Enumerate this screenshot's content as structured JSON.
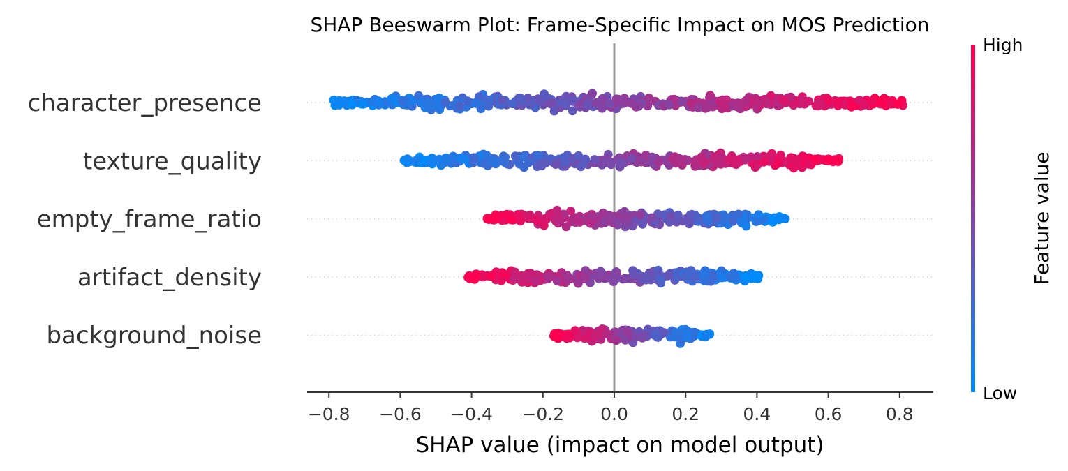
{
  "chart_data": {
    "type": "scatter",
    "subtype": "shap-beeswarm",
    "title": "SHAP Beeswarm Plot: Frame-Specific Impact on MOS Prediction",
    "xlabel": "SHAP value (impact on model output)",
    "xlim": [
      -0.86,
      0.89
    ],
    "xticks": [
      -0.8,
      -0.6,
      -0.4,
      -0.2,
      0.0,
      0.2,
      0.4,
      0.6,
      0.8
    ],
    "xtick_labels": [
      "−0.8",
      "−0.6",
      "−0.4",
      "−0.2",
      "0.0",
      "0.2",
      "0.4",
      "0.6",
      "0.8"
    ],
    "zero_line": 0.0,
    "colors": {
      "low": "#008bfb",
      "high": "#ff0051",
      "zero_line": "#999999"
    },
    "colorbar": {
      "label": "Feature value",
      "high_label": "High",
      "low_label": "Low"
    },
    "features": [
      {
        "name": "character_presence",
        "shap_range": [
          -0.79,
          0.81
        ],
        "high_value_direction": "positive"
      },
      {
        "name": "texture_quality",
        "shap_range": [
          -0.59,
          0.63
        ],
        "high_value_direction": "positive"
      },
      {
        "name": "empty_frame_ratio",
        "shap_range": [
          -0.36,
          0.48
        ],
        "high_value_direction": "negative"
      },
      {
        "name": "artifact_density",
        "shap_range": [
          -0.41,
          0.41
        ],
        "high_value_direction": "negative"
      },
      {
        "name": "background_noise",
        "shap_range": [
          -0.17,
          0.27
        ],
        "high_value_direction": "negative"
      }
    ]
  }
}
